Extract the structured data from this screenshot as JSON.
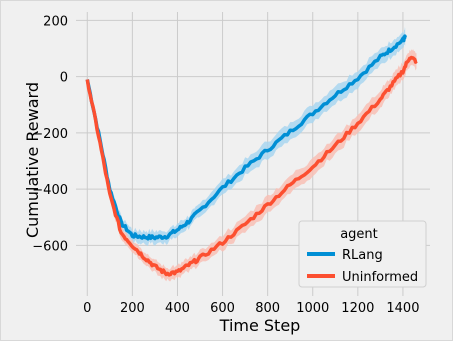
{
  "chart_data": {
    "type": "line",
    "title": "",
    "xlabel": "Time Step",
    "ylabel": "Cumulative Reward",
    "xlim": [
      -50,
      1520
    ],
    "ylim": [
      -780,
      230
    ],
    "xticks": [
      0,
      200,
      400,
      600,
      800,
      1000,
      1200,
      1400
    ],
    "yticks": [
      -600,
      -400,
      -200,
      0,
      200
    ],
    "grid": true,
    "legend": {
      "title": "agent",
      "position": "lower-right"
    },
    "series": [
      {
        "name": "RLang",
        "color": "#008fd5",
        "band_color": "#a9d6f0",
        "x": [
          0,
          50,
          100,
          150,
          200,
          250,
          300,
          350,
          400,
          450,
          500,
          600,
          700,
          800,
          900,
          1000,
          1100,
          1200,
          1300,
          1350,
          1400,
          1410
        ],
        "y": [
          -10,
          -200,
          -400,
          -520,
          -565,
          -570,
          -572,
          -568,
          -545,
          -515,
          -475,
          -395,
          -325,
          -260,
          -195,
          -130,
          -65,
          -5,
          70,
          100,
          130,
          140
        ],
        "err": [
          0,
          12,
          18,
          20,
          22,
          22,
          22,
          22,
          22,
          22,
          24,
          26,
          28,
          30,
          30,
          30,
          30,
          30,
          28,
          28,
          28,
          28
        ]
      },
      {
        "name": "Uninformed",
        "color": "#fc4f30",
        "band_color": "#f8c0b5",
        "x": [
          0,
          50,
          100,
          150,
          200,
          250,
          300,
          350,
          400,
          450,
          500,
          600,
          700,
          800,
          900,
          1000,
          1100,
          1200,
          1300,
          1350,
          1400,
          1430,
          1460
        ],
        "y": [
          -10,
          -210,
          -420,
          -555,
          -600,
          -640,
          -675,
          -700,
          -695,
          -670,
          -645,
          -590,
          -525,
          -455,
          -385,
          -320,
          -245,
          -165,
          -80,
          -30,
          20,
          70,
          55
        ],
        "err": [
          0,
          12,
          18,
          20,
          22,
          22,
          22,
          22,
          22,
          22,
          24,
          26,
          28,
          30,
          30,
          30,
          30,
          30,
          30,
          30,
          30,
          28,
          28
        ]
      }
    ]
  }
}
